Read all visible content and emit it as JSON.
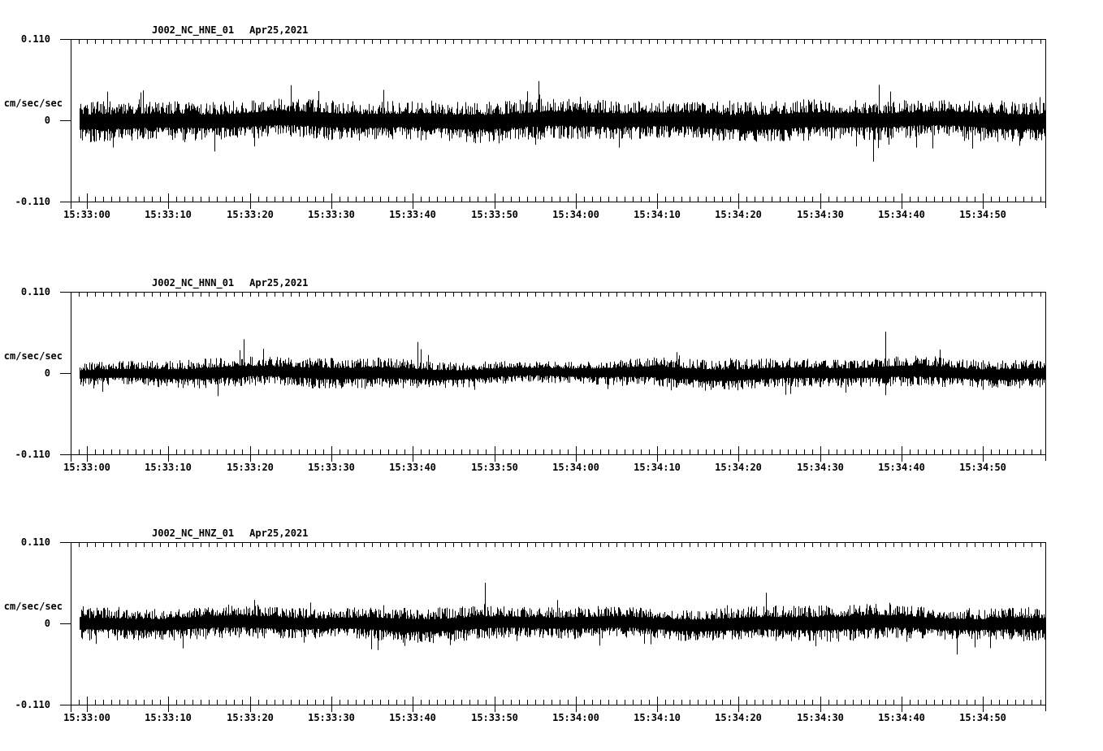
{
  "page": {
    "background_color": "#ffffff",
    "ink_color": "#000000",
    "description": "Three-component strong-motion seismogram display, station J002 network NC"
  },
  "time_axis": {
    "labels": [
      "15:33:00",
      "15:33:10",
      "15:33:20",
      "15:33:30",
      "15:33:40",
      "15:33:50",
      "15:34:00",
      "15:34:10",
      "15:34:20",
      "15:34:30",
      "15:34:40",
      "15:34:50"
    ],
    "start": "15:32:58",
    "end": "15:34:58",
    "minor_tick_seconds": 1,
    "major_tick_seconds": 10
  },
  "chart_data": [
    {
      "type": "line",
      "title": "J002_NC_HNE_01",
      "date": "Apr25,2021",
      "ylabel": "cm/sec/sec",
      "yticks": [
        "0.110",
        "0",
        "-0.110"
      ],
      "ylim": [
        -0.11,
        0.11
      ],
      "baseline": 0,
      "band_amplitude": 0.021,
      "seed": 11,
      "envelope": [
        1.05,
        1,
        0.95,
        1,
        1,
        0.95,
        1.05,
        1,
        1,
        0.95,
        1,
        1.05,
        1,
        0.95,
        1.05,
        1
      ],
      "spikes": [
        {
          "t": 0.475,
          "amp": 0.053
        },
        {
          "t": 0.822,
          "amp": -0.056
        },
        {
          "t": 0.828,
          "amp": 0.048
        }
      ]
    },
    {
      "type": "line",
      "title": "J002_NC_HNN_01",
      "date": "Apr25,2021",
      "ylabel": "cm/sec/sec",
      "yticks": [
        "0.110",
        "0",
        "-0.110"
      ],
      "ylim": [
        -0.11,
        0.11
      ],
      "baseline": 0,
      "band_amplitude": 0.014,
      "seed": 22,
      "envelope": [
        0.85,
        0.95,
        1.15,
        1.05,
        1.2,
        1.1,
        0.95,
        0.8,
        0.9,
        1.15,
        1.2,
        1.1,
        1.05,
        1.2,
        1.05,
        1.1
      ],
      "spikes": [
        {
          "t": 0.17,
          "amp": 0.046
        },
        {
          "t": 0.35,
          "amp": 0.042
        },
        {
          "t": 0.834,
          "amp": 0.056
        }
      ]
    },
    {
      "type": "line",
      "title": "J002_NC_HNZ_01",
      "date": "Apr25,2021",
      "ylabel": "cm/sec/sec",
      "yticks": [
        "0.110",
        "0",
        "-0.110"
      ],
      "ylim": [
        -0.11,
        0.11
      ],
      "baseline": 0,
      "band_amplitude": 0.017,
      "seed": 33,
      "envelope": [
        1,
        0.95,
        1.05,
        1,
        0.9,
        1.15,
        1.05,
        0.95,
        1,
        0.95,
        1.05,
        1.1,
        1.15,
        1,
        0.95,
        1.05
      ],
      "spikes": [
        {
          "t": 0.42,
          "amp": 0.055
        },
        {
          "t": 0.908,
          "amp": -0.042
        }
      ]
    }
  ]
}
